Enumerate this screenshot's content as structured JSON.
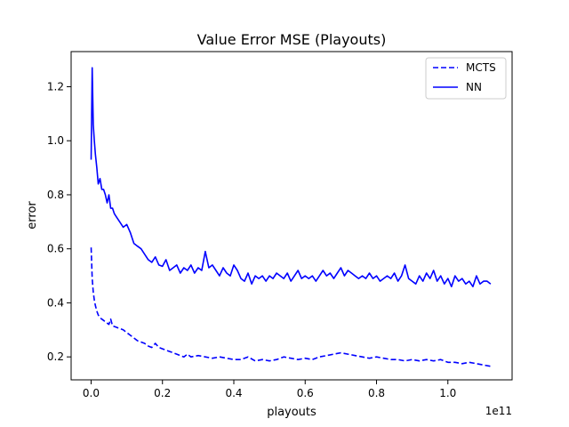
{
  "chart_data": {
    "type": "line",
    "title": "Value Error MSE (Playouts)",
    "xlabel": "playouts",
    "ylabel": "error",
    "x_offset_label": "1e11",
    "xlim": [
      -0.056,
      1.18
    ],
    "ylim": [
      0.115,
      1.33
    ],
    "x_ticks": [
      0.0,
      0.2,
      0.4,
      0.6,
      0.8,
      1.0
    ],
    "x_tick_labels": [
      "0.0",
      "0.2",
      "0.4",
      "0.6",
      "0.8",
      "1.0"
    ],
    "y_ticks": [
      0.2,
      0.4,
      0.6,
      0.8,
      1.0,
      1.2
    ],
    "y_tick_labels": [
      "0.2",
      "0.4",
      "0.6",
      "0.8",
      "1.0",
      "1.2"
    ],
    "grid": false,
    "legend_position": "top-right",
    "series": [
      {
        "name": "MCTS",
        "color": "#0000ff",
        "style": "dashed",
        "points": [
          [
            0.0,
            0.605
          ],
          [
            0.003,
            0.49
          ],
          [
            0.006,
            0.44
          ],
          [
            0.009,
            0.41
          ],
          [
            0.012,
            0.39
          ],
          [
            0.016,
            0.37
          ],
          [
            0.02,
            0.355
          ],
          [
            0.025,
            0.345
          ],
          [
            0.03,
            0.34
          ],
          [
            0.035,
            0.335
          ],
          [
            0.04,
            0.33
          ],
          [
            0.045,
            0.325
          ],
          [
            0.05,
            0.32
          ],
          [
            0.055,
            0.34
          ],
          [
            0.06,
            0.315
          ],
          [
            0.07,
            0.31
          ],
          [
            0.08,
            0.305
          ],
          [
            0.09,
            0.3
          ],
          [
            0.1,
            0.29
          ],
          [
            0.11,
            0.28
          ],
          [
            0.12,
            0.27
          ],
          [
            0.13,
            0.26
          ],
          [
            0.14,
            0.255
          ],
          [
            0.15,
            0.25
          ],
          [
            0.16,
            0.24
          ],
          [
            0.17,
            0.235
          ],
          [
            0.18,
            0.25
          ],
          [
            0.19,
            0.235
          ],
          [
            0.2,
            0.23
          ],
          [
            0.21,
            0.225
          ],
          [
            0.22,
            0.22
          ],
          [
            0.23,
            0.215
          ],
          [
            0.24,
            0.21
          ],
          [
            0.25,
            0.205
          ],
          [
            0.26,
            0.2
          ],
          [
            0.27,
            0.21
          ],
          [
            0.28,
            0.2
          ],
          [
            0.3,
            0.205
          ],
          [
            0.32,
            0.2
          ],
          [
            0.34,
            0.195
          ],
          [
            0.36,
            0.2
          ],
          [
            0.38,
            0.195
          ],
          [
            0.4,
            0.19
          ],
          [
            0.42,
            0.19
          ],
          [
            0.44,
            0.2
          ],
          [
            0.46,
            0.185
          ],
          [
            0.48,
            0.19
          ],
          [
            0.5,
            0.185
          ],
          [
            0.52,
            0.19
          ],
          [
            0.54,
            0.2
          ],
          [
            0.56,
            0.195
          ],
          [
            0.58,
            0.19
          ],
          [
            0.6,
            0.195
          ],
          [
            0.62,
            0.19
          ],
          [
            0.64,
            0.2
          ],
          [
            0.66,
            0.205
          ],
          [
            0.68,
            0.21
          ],
          [
            0.7,
            0.215
          ],
          [
            0.72,
            0.21
          ],
          [
            0.74,
            0.205
          ],
          [
            0.76,
            0.2
          ],
          [
            0.78,
            0.195
          ],
          [
            0.8,
            0.2
          ],
          [
            0.82,
            0.195
          ],
          [
            0.84,
            0.19
          ],
          [
            0.86,
            0.19
          ],
          [
            0.88,
            0.185
          ],
          [
            0.9,
            0.19
          ],
          [
            0.92,
            0.185
          ],
          [
            0.94,
            0.19
          ],
          [
            0.96,
            0.185
          ],
          [
            0.98,
            0.19
          ],
          [
            1.0,
            0.18
          ],
          [
            1.02,
            0.18
          ],
          [
            1.04,
            0.175
          ],
          [
            1.06,
            0.18
          ],
          [
            1.08,
            0.175
          ],
          [
            1.1,
            0.17
          ],
          [
            1.12,
            0.165
          ]
        ]
      },
      {
        "name": "NN",
        "color": "#0000ff",
        "style": "solid",
        "points": [
          [
            0.0,
            0.93
          ],
          [
            0.003,
            1.27
          ],
          [
            0.006,
            1.06
          ],
          [
            0.009,
            1.0
          ],
          [
            0.012,
            0.95
          ],
          [
            0.016,
            0.9
          ],
          [
            0.02,
            0.84
          ],
          [
            0.025,
            0.86
          ],
          [
            0.03,
            0.82
          ],
          [
            0.035,
            0.82
          ],
          [
            0.04,
            0.8
          ],
          [
            0.045,
            0.77
          ],
          [
            0.05,
            0.8
          ],
          [
            0.055,
            0.75
          ],
          [
            0.06,
            0.75
          ],
          [
            0.065,
            0.73
          ],
          [
            0.07,
            0.72
          ],
          [
            0.08,
            0.7
          ],
          [
            0.09,
            0.68
          ],
          [
            0.1,
            0.69
          ],
          [
            0.11,
            0.66
          ],
          [
            0.12,
            0.62
          ],
          [
            0.13,
            0.61
          ],
          [
            0.14,
            0.6
          ],
          [
            0.15,
            0.58
          ],
          [
            0.16,
            0.56
          ],
          [
            0.17,
            0.55
          ],
          [
            0.18,
            0.57
          ],
          [
            0.19,
            0.54
          ],
          [
            0.2,
            0.535
          ],
          [
            0.21,
            0.56
          ],
          [
            0.22,
            0.52
          ],
          [
            0.23,
            0.53
          ],
          [
            0.24,
            0.54
          ],
          [
            0.25,
            0.51
          ],
          [
            0.26,
            0.53
          ],
          [
            0.27,
            0.52
          ],
          [
            0.28,
            0.54
          ],
          [
            0.29,
            0.51
          ],
          [
            0.3,
            0.53
          ],
          [
            0.31,
            0.52
          ],
          [
            0.32,
            0.59
          ],
          [
            0.33,
            0.53
          ],
          [
            0.34,
            0.54
          ],
          [
            0.35,
            0.52
          ],
          [
            0.36,
            0.5
          ],
          [
            0.37,
            0.53
          ],
          [
            0.38,
            0.51
          ],
          [
            0.39,
            0.5
          ],
          [
            0.4,
            0.54
          ],
          [
            0.41,
            0.52
          ],
          [
            0.42,
            0.49
          ],
          [
            0.43,
            0.48
          ],
          [
            0.44,
            0.51
          ],
          [
            0.45,
            0.47
          ],
          [
            0.46,
            0.5
          ],
          [
            0.47,
            0.49
          ],
          [
            0.48,
            0.5
          ],
          [
            0.49,
            0.48
          ],
          [
            0.5,
            0.5
          ],
          [
            0.51,
            0.49
          ],
          [
            0.52,
            0.51
          ],
          [
            0.53,
            0.5
          ],
          [
            0.54,
            0.49
          ],
          [
            0.55,
            0.51
          ],
          [
            0.56,
            0.48
          ],
          [
            0.57,
            0.5
          ],
          [
            0.58,
            0.52
          ],
          [
            0.59,
            0.49
          ],
          [
            0.6,
            0.5
          ],
          [
            0.61,
            0.49
          ],
          [
            0.62,
            0.5
          ],
          [
            0.63,
            0.48
          ],
          [
            0.64,
            0.5
          ],
          [
            0.65,
            0.52
          ],
          [
            0.66,
            0.5
          ],
          [
            0.67,
            0.51
          ],
          [
            0.68,
            0.49
          ],
          [
            0.69,
            0.51
          ],
          [
            0.7,
            0.53
          ],
          [
            0.71,
            0.5
          ],
          [
            0.72,
            0.52
          ],
          [
            0.73,
            0.51
          ],
          [
            0.74,
            0.5
          ],
          [
            0.75,
            0.49
          ],
          [
            0.76,
            0.5
          ],
          [
            0.77,
            0.49
          ],
          [
            0.78,
            0.51
          ],
          [
            0.79,
            0.49
          ],
          [
            0.8,
            0.5
          ],
          [
            0.81,
            0.48
          ],
          [
            0.82,
            0.49
          ],
          [
            0.83,
            0.5
          ],
          [
            0.84,
            0.49
          ],
          [
            0.85,
            0.51
          ],
          [
            0.86,
            0.48
          ],
          [
            0.87,
            0.5
          ],
          [
            0.88,
            0.54
          ],
          [
            0.89,
            0.49
          ],
          [
            0.9,
            0.48
          ],
          [
            0.91,
            0.47
          ],
          [
            0.92,
            0.5
          ],
          [
            0.93,
            0.48
          ],
          [
            0.94,
            0.51
          ],
          [
            0.95,
            0.49
          ],
          [
            0.96,
            0.52
          ],
          [
            0.97,
            0.48
          ],
          [
            0.98,
            0.5
          ],
          [
            0.99,
            0.47
          ],
          [
            1.0,
            0.49
          ],
          [
            1.01,
            0.46
          ],
          [
            1.02,
            0.5
          ],
          [
            1.03,
            0.48
          ],
          [
            1.04,
            0.49
          ],
          [
            1.05,
            0.47
          ],
          [
            1.06,
            0.48
          ],
          [
            1.07,
            0.46
          ],
          [
            1.08,
            0.5
          ],
          [
            1.09,
            0.47
          ],
          [
            1.1,
            0.48
          ],
          [
            1.11,
            0.48
          ],
          [
            1.12,
            0.47
          ]
        ]
      }
    ]
  }
}
